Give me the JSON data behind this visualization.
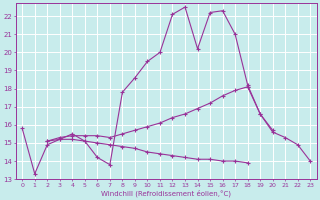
{
  "xlabel": "Windchill (Refroidissement éolien,°C)",
  "bg_color": "#c8ecec",
  "grid_color": "#ffffff",
  "line_color": "#993399",
  "xlim": [
    -0.5,
    23.5
  ],
  "ylim": [
    13,
    22.7
  ],
  "yticks": [
    13,
    14,
    15,
    16,
    17,
    18,
    19,
    20,
    21,
    22
  ],
  "xticks": [
    0,
    1,
    2,
    3,
    4,
    5,
    6,
    7,
    8,
    9,
    10,
    11,
    12,
    13,
    14,
    15,
    16,
    17,
    18,
    19,
    20,
    21,
    22,
    23
  ],
  "series": [
    {
      "x": [
        0,
        1,
        2,
        3,
        4,
        5,
        6,
        7,
        8,
        9,
        10,
        11,
        12,
        13,
        14,
        15,
        16,
        17,
        18,
        19,
        20
      ],
      "y": [
        15.8,
        13.3,
        14.9,
        15.2,
        15.5,
        15.1,
        14.2,
        13.8,
        17.8,
        18.6,
        19.5,
        20.0,
        22.1,
        22.5,
        20.2,
        22.2,
        22.3,
        21.0,
        18.2,
        16.6,
        15.7
      ]
    },
    {
      "x": [
        2,
        3,
        4,
        5,
        6,
        7,
        8,
        9,
        10,
        11,
        12,
        13,
        14,
        15,
        16,
        17,
        18
      ],
      "y": [
        15.1,
        15.3,
        15.4,
        15.4,
        15.4,
        15.3,
        15.5,
        15.7,
        15.9,
        16.1,
        16.4,
        16.6,
        16.9,
        17.2,
        17.6,
        17.9,
        18.1
      ]
    },
    {
      "x": [
        2,
        3,
        4,
        5,
        6,
        7,
        8,
        9,
        10,
        11,
        12,
        13,
        14,
        15,
        16,
        17,
        18
      ],
      "y": [
        15.1,
        15.2,
        15.2,
        15.1,
        15.0,
        14.9,
        14.8,
        14.7,
        14.5,
        14.4,
        14.3,
        14.2,
        14.1,
        14.1,
        14.0,
        14.0,
        13.9
      ]
    },
    {
      "x": [
        18,
        19,
        20,
        21,
        22,
        23
      ],
      "y": [
        18.1,
        16.6,
        15.6,
        15.3,
        14.9,
        14.0
      ]
    }
  ]
}
